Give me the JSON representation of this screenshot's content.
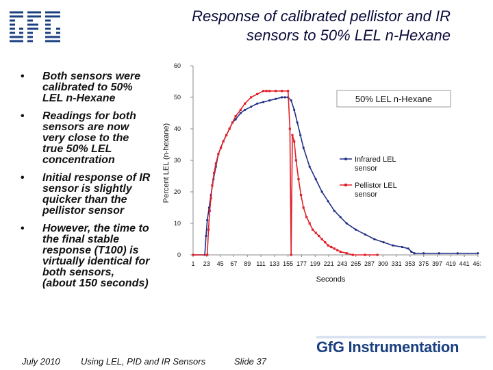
{
  "title_line1": "Response of calibrated pellistor and IR",
  "title_line2": "sensors to 50% LEL n-Hexane",
  "logo_icon": "gfg-logo-icon",
  "bullets": [
    "Both sensors were calibrated to 50% LEL n-Hexane",
    "Readings for both sensors are now very close to the true 50% LEL concentration",
    "Initial response of IR sensor is slightly quicker than the pellistor sensor",
    "However, the time to the final stable response (T100) is virtually identical for both sensors, (about 150 seconds)"
  ],
  "footer": {
    "date": "July 2010",
    "center": "Using LEL, PID and IR Sensors",
    "slide": "Slide 37"
  },
  "brand": "GfG Instrumentation",
  "colors": {
    "title": "#0a0a3a",
    "infrared": "#1f2f86",
    "pellistor": "#e0202a",
    "brand": "#1a3f80"
  },
  "chart_data": {
    "type": "line",
    "title": "50% LEL n-Hexane",
    "xlabel": "Seconds",
    "ylabel": "Percent LEL (n-hexane)",
    "ylim": [
      0,
      60
    ],
    "xlim": [
      1,
      463
    ],
    "yticks": [
      0,
      10,
      20,
      30,
      40,
      50,
      60
    ],
    "xticks": [
      1,
      23,
      45,
      67,
      89,
      111,
      133,
      155,
      177,
      199,
      221,
      243,
      265,
      287,
      309,
      331,
      353,
      375,
      397,
      419,
      441,
      463
    ],
    "legend_position": "right",
    "grid": false,
    "series": [
      {
        "name": "Infrared LEL sensor",
        "color": "#1f2f86",
        "x": [
          1,
          20,
          22,
          24,
          27,
          30,
          34,
          38,
          42,
          46,
          50,
          55,
          60,
          65,
          70,
          78,
          85,
          95,
          105,
          115,
          125,
          135,
          145,
          150,
          155,
          160,
          165,
          170,
          175,
          180,
          190,
          200,
          210,
          220,
          230,
          240,
          250,
          265,
          280,
          295,
          310,
          325,
          340,
          350,
          355,
          360,
          375,
          400,
          430,
          463
        ],
        "y": [
          0,
          0,
          6,
          11,
          15,
          19,
          24,
          28,
          32,
          34,
          36,
          38,
          40,
          42,
          43,
          45,
          46,
          47,
          48,
          48.5,
          49,
          49.5,
          50,
          50,
          50,
          49,
          46,
          42,
          38,
          34,
          28,
          24,
          20,
          17,
          14,
          12,
          10,
          8,
          6.5,
          5,
          4,
          3,
          2.5,
          2,
          1,
          0.5,
          0.5,
          0.5,
          0.5,
          0.5
        ]
      },
      {
        "name": "Pellistor LEL sensor",
        "color": "#e0202a",
        "x": [
          1,
          24,
          26,
          28,
          30,
          32,
          35,
          38,
          42,
          46,
          50,
          55,
          60,
          65,
          70,
          78,
          85,
          95,
          105,
          115,
          120,
          125,
          135,
          145,
          155,
          158,
          160,
          162,
          165,
          168,
          172,
          176,
          180,
          185,
          190,
          195,
          200,
          205,
          210,
          215,
          220,
          225,
          230,
          235,
          240,
          250,
          260,
          280,
          300
        ],
        "y": [
          0,
          0,
          8,
          14,
          18,
          22,
          26,
          29,
          32,
          34,
          36,
          38,
          40,
          42,
          44,
          46,
          48,
          50,
          51,
          52,
          52,
          52,
          52,
          52,
          52,
          40,
          0,
          38,
          36,
          30,
          24,
          19,
          15,
          12,
          10,
          8,
          7,
          6,
          5,
          4,
          3,
          2.5,
          2,
          1.5,
          1,
          0.5,
          0,
          0,
          0
        ]
      }
    ]
  }
}
